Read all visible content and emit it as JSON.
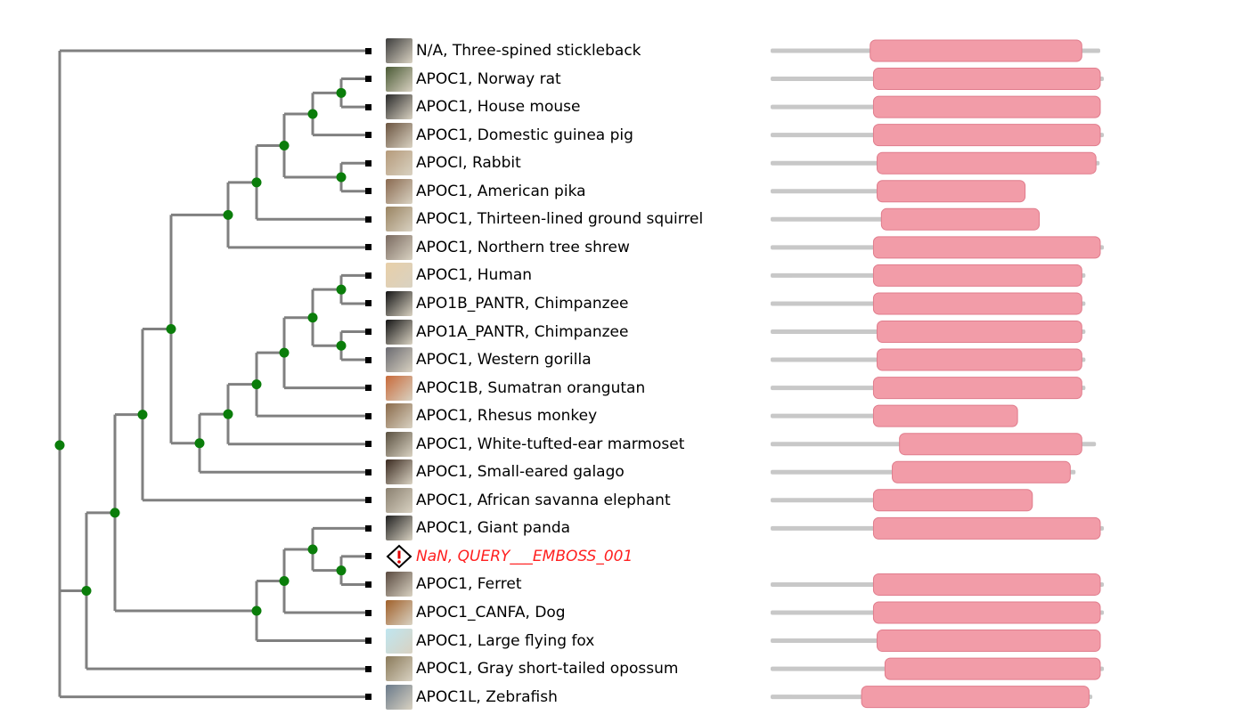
{
  "colors": {
    "branch": "#808080",
    "node": "#0a7d0a",
    "domain": "#f29ca8",
    "domain_edge": "#e07c8c",
    "track": "#c8c8c8",
    "query_text": "#ff2020"
  },
  "leaves": [
    {
      "label": "N/A, Three-spined stickleback",
      "thumb": "#3d3d3d",
      "track": [
        0,
        1
      ],
      "domain": [
        0.302,
        0.944
      ]
    },
    {
      "label": "APOC1, Norway rat",
      "thumb": "#4a5a35",
      "track": [
        0,
        1.011
      ],
      "domain": [
        0.312,
        1.0
      ]
    },
    {
      "label": "APOC1, House mouse",
      "thumb": "#2a2a2a",
      "track": [
        0,
        0.998
      ],
      "domain": [
        0.312,
        1.0
      ]
    },
    {
      "label": "APOC1, Domestic guinea pig",
      "thumb": "#6b5440",
      "track": [
        0,
        1.011
      ],
      "domain": [
        0.312,
        1.0
      ]
    },
    {
      "label": "APOCI, Rabbit",
      "thumb": "#b59a7a",
      "track": [
        0,
        0.998
      ],
      "domain": [
        0.323,
        0.987
      ]
    },
    {
      "label": "APOC1, American pika",
      "thumb": "#8a6a50",
      "track": [
        0,
        0.772
      ],
      "domain": [
        0.323,
        0.772
      ]
    },
    {
      "label": "APOC1, Thirteen-lined ground squirrel",
      "thumb": "#9a8462",
      "track": [
        0,
        0.815
      ],
      "domain": [
        0.336,
        0.815
      ]
    },
    {
      "label": "APOC1, Northern tree shrew",
      "thumb": "#7a6a60",
      "track": [
        0,
        1.011
      ],
      "domain": [
        0.312,
        1.0
      ]
    },
    {
      "label": "APOC1, Human",
      "thumb": "#e8cfa8",
      "track": [
        0,
        0.955
      ],
      "domain": [
        0.312,
        0.944
      ]
    },
    {
      "label": "APO1B_PANTR, Chimpanzee",
      "thumb": "#151515",
      "track": [
        0,
        0.955
      ],
      "domain": [
        0.312,
        0.944
      ]
    },
    {
      "label": "APO1A_PANTR, Chimpanzee",
      "thumb": "#151515",
      "track": [
        0,
        0.955
      ],
      "domain": [
        0.323,
        0.944
      ]
    },
    {
      "label": "APOC1, Western gorilla",
      "thumb": "#6a6a70",
      "track": [
        0,
        0.955
      ],
      "domain": [
        0.323,
        0.944
      ]
    },
    {
      "label": "APOC1B, Sumatran orangutan",
      "thumb": "#c86a3a",
      "track": [
        0,
        0.955
      ],
      "domain": [
        0.312,
        0.944
      ]
    },
    {
      "label": "APOC1, Rhesus monkey",
      "thumb": "#8a6a4a",
      "track": [
        0,
        0.749
      ],
      "domain": [
        0.312,
        0.749
      ]
    },
    {
      "label": "APOC1, White-tufted-ear marmoset",
      "thumb": "#5a5040",
      "track": [
        0,
        0.987
      ],
      "domain": [
        0.391,
        0.944
      ]
    },
    {
      "label": "APOC1, Small-eared galago",
      "thumb": "#3a2a20",
      "track": [
        0,
        0.925
      ],
      "domain": [
        0.369,
        0.909
      ]
    },
    {
      "label": "APOC1, African savanna elephant",
      "thumb": "#8a8070",
      "track": [
        0,
        0.794
      ],
      "domain": [
        0.312,
        0.794
      ]
    },
    {
      "label": "APOC1, Giant panda",
      "thumb": "#202020",
      "track": [
        0,
        1.011
      ],
      "domain": [
        0.312,
        1.0
      ]
    },
    {
      "label": "NaN, QUERY___EMBOSS_001",
      "thumb": "",
      "query": true,
      "track": null,
      "domain": null
    },
    {
      "label": "APOC1, Ferret",
      "thumb": "#5a4a40",
      "track": [
        0,
        1.011
      ],
      "domain": [
        0.312,
        1.0
      ]
    },
    {
      "label": "APOC1_CANFA, Dog",
      "thumb": "#a0602a",
      "track": [
        0,
        1.011
      ],
      "domain": [
        0.312,
        1.0
      ]
    },
    {
      "label": "APOC1, Large flying fox",
      "thumb": "#bfe6f0",
      "track": [
        0,
        1.0
      ],
      "domain": [
        0.323,
        1.0
      ]
    },
    {
      "label": "APOC1, Gray short-tailed opossum",
      "thumb": "#8a7a5a",
      "track": [
        0,
        1.011
      ],
      "domain": [
        0.347,
        1.0
      ]
    },
    {
      "label": "APOC1L, Zebrafish",
      "thumb": "#6a7a8a",
      "track": [
        0,
        0.976
      ],
      "domain": [
        0.276,
        0.966
      ]
    }
  ]
}
